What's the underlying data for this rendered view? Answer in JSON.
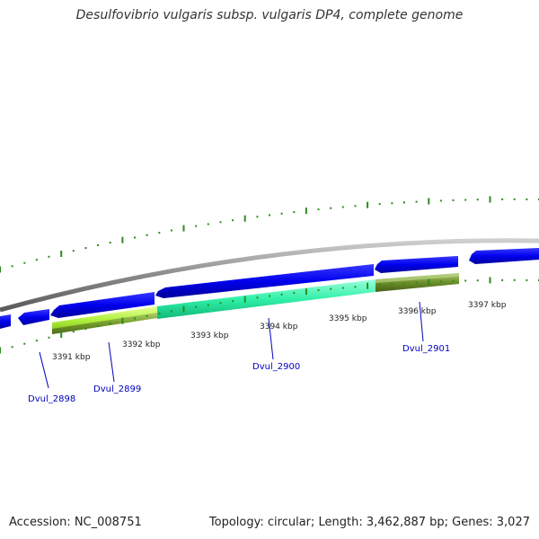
{
  "title": "Desulfovibrio vulgaris subsp. vulgaris DP4, complete genome",
  "footer": {
    "accession": "Accession: NC_008751",
    "summary": "Topology: circular; Length: 3,462,887 bp; Genes: 3,027"
  },
  "ticks": [
    "3391 kbp",
    "3392 kbp",
    "3393 kbp",
    "3394 kbp",
    "3395 kbp",
    "3396 kbp",
    "3397 kbp"
  ],
  "genes": [
    "Dvul_2898",
    "Dvul_2899",
    "Dvul_2900",
    "Dvul_2901"
  ],
  "colors": {
    "backbone": "#8a8a8a",
    "cds": "#0000ee",
    "highlight_green": "#aef03a",
    "highlight_teal": "#30f0a8",
    "highlight_olive": "#6d8f2a",
    "tick_green": "#2f8a1f",
    "gene_label": "#0000bb"
  }
}
